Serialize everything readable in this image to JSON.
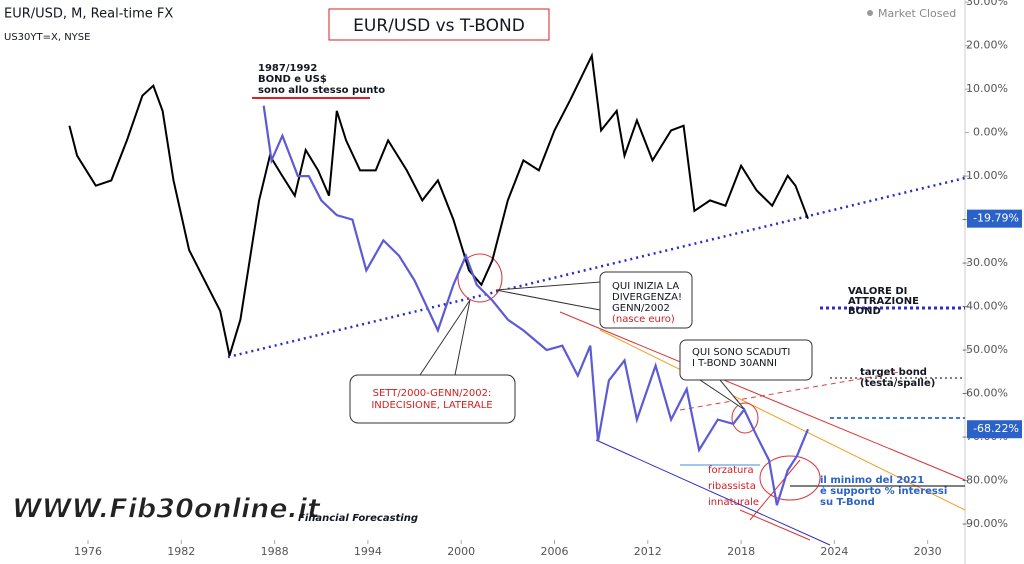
{
  "chart_data": {
    "type": "line",
    "title": "EUR/USD vs T-BOND",
    "status": "Market Closed",
    "xlim": [
      1970.34,
      2032.4
    ],
    "ylim": [
      -93.7,
      30.5
    ],
    "xticks": [
      1976,
      1982,
      1988,
      1994,
      2000,
      2006,
      2012,
      2018,
      2024,
      2030
    ],
    "yticks": [
      {
        "value": 30,
        "label": "30.00%"
      },
      {
        "value": 20,
        "label": "20.00%"
      },
      {
        "value": 10,
        "label": "10.00%"
      },
      {
        "value": 0,
        "label": "0.00%"
      },
      {
        "value": -10,
        "label": "-10.00%"
      },
      {
        "value": -20,
        "label": "-20.00%"
      },
      {
        "value": -30,
        "label": "-30.00%"
      },
      {
        "value": -40,
        "label": "-40.00%"
      },
      {
        "value": -50,
        "label": "-50.00%"
      },
      {
        "value": -60,
        "label": "-60.00%"
      },
      {
        "value": -70,
        "label": "-70.00%"
      },
      {
        "value": -80,
        "label": "-80.00%"
      },
      {
        "value": -90,
        "label": "-90.00%"
      }
    ],
    "grid": false,
    "series": [
      {
        "name": "EUR/USD, M, Real-time FX",
        "color": "#000000",
        "last_label": "-19.79%",
        "x": [
          1974.8,
          1975.3,
          1976.5,
          1977.5,
          1978.5,
          1979.5,
          1980.2,
          1980.8,
          1981.5,
          1982.5,
          1983.5,
          1984.5,
          1985.1,
          1985.8,
          1986.5,
          1987,
          1987.7,
          1988.5,
          1989.3,
          1990,
          1990.8,
          1991.5,
          1992,
          1992.6,
          1993.5,
          1994.5,
          1995.3,
          1996.5,
          1997.5,
          1998.5,
          1999.5,
          2000.5,
          2001.3,
          2002,
          2003,
          2004,
          2005,
          2006,
          2007,
          2008.4,
          2009,
          2010,
          2010.5,
          2011.3,
          2012.3,
          2013.5,
          2014.3,
          2015,
          2016,
          2017,
          2018,
          2019,
          2020,
          2021,
          2021.5,
          2022.3
        ],
        "values": [
          1.6,
          -5.3,
          -12.2,
          -11,
          -1.8,
          8.5,
          10.8,
          5,
          -11,
          -27,
          -34,
          -41,
          -51.3,
          -43,
          -27,
          -15.6,
          -5.3,
          -10,
          -14.5,
          -4,
          -8.7,
          -14.5,
          5,
          -1.8,
          -8.7,
          -8.7,
          -1.8,
          -8.7,
          -15.6,
          -11,
          -20,
          -31.7,
          -35,
          -29.4,
          -15.6,
          -6.4,
          -8.7,
          0.5,
          7.4,
          17.7,
          0.5,
          5,
          -5.3,
          2.8,
          -6.4,
          0.5,
          1.6,
          -18,
          -15.6,
          -16.8,
          -7.6,
          -13.3,
          -16.8,
          -9.9,
          -12.2,
          -19.79
        ]
      },
      {
        "name": "US30YT=X, NYSE",
        "color": "#5b5bd6",
        "last_label": "-68.22%",
        "x": [
          1987.3,
          1987.8,
          1988.5,
          1989.5,
          1990.2,
          1991,
          1992,
          1993,
          1993.9,
          1995,
          1996,
          1997,
          1998.5,
          1999.5,
          2000.3,
          2001,
          2002,
          2003,
          2004,
          2005.5,
          2006.5,
          2007.5,
          2008.3,
          2008.8,
          2009.5,
          2010.5,
          2011.3,
          2012.5,
          2013.5,
          2014.5,
          2015.3,
          2016.5,
          2017.5,
          2018.2,
          2019,
          2019.8,
          2020.3,
          2021,
          2021.6,
          2022.3
        ],
        "values": [
          6.2,
          -6.4,
          -0.7,
          -10,
          -10,
          -15.6,
          -19,
          -20,
          -31.7,
          -24.8,
          -28.3,
          -34,
          -45.5,
          -35,
          -28.3,
          -35,
          -38.6,
          -43,
          -45.5,
          -50,
          -49,
          -55.9,
          -49,
          -71,
          -57,
          -52.4,
          -66,
          -53.6,
          -66,
          -59,
          -73,
          -66,
          -67,
          -63.7,
          -69.7,
          -75.4,
          -85.7,
          -77.7,
          -74.3,
          -68.22
        ]
      }
    ],
    "annotations": [
      {
        "lines": [
          "1987/1992",
          "BOND e US$",
          "sono allo stesso punto"
        ]
      },
      {
        "lines": [
          "QUI INIZIA LA",
          "DIVERGENZA!",
          "GENN/2002"
        ],
        "note": "(nasce euro)"
      },
      {
        "lines": [
          "SETT/2000-GENN/2002:",
          "INDECISIONE, LATERALE"
        ]
      },
      {
        "lines": [
          "QUI SONO SCADUTI",
          "I T-BOND 30ANNI"
        ]
      },
      {
        "lines": [
          "VALORE DI",
          "ATTRAZIONE",
          "BOND"
        ]
      },
      {
        "lines": [
          "target bond",
          "(testa/spalle)"
        ]
      },
      {
        "lines": [
          "forzatura",
          "ribassista",
          "innaturale"
        ]
      },
      {
        "lines": [
          "il minimo del 2021",
          "è supporto % interessi",
          "su T-Bond"
        ]
      }
    ],
    "logo": "WWW.Fib30online.it",
    "tagline": "Financial Forecasting"
  }
}
